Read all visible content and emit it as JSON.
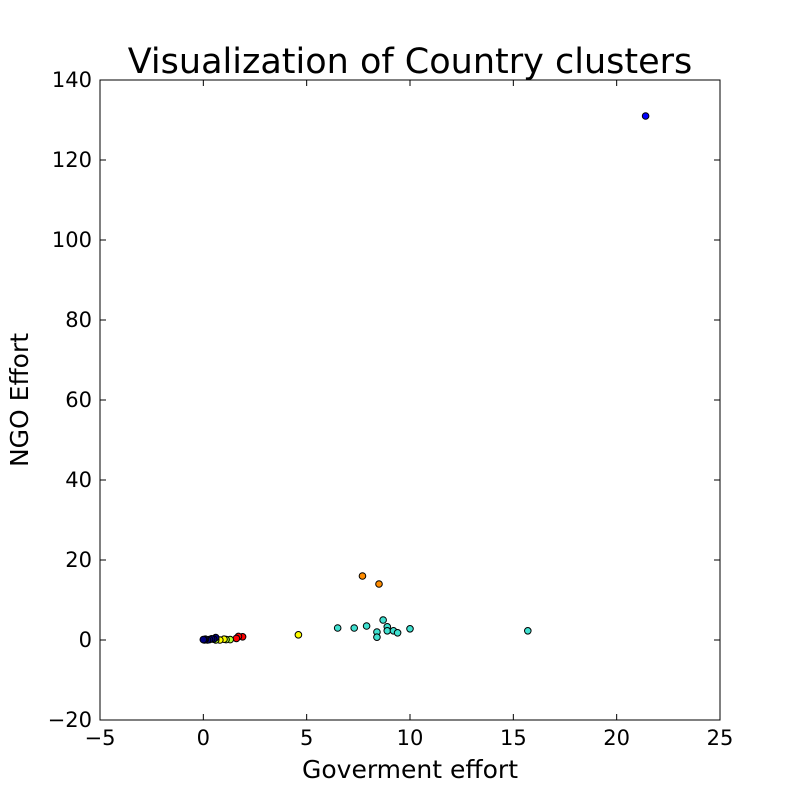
{
  "chart_data": {
    "type": "scatter",
    "title": "Visualization of Country clusters",
    "xlabel": "Goverment effort",
    "ylabel": "NGO Effort",
    "xlim": [
      -5,
      25
    ],
    "ylim": [
      -20,
      140
    ],
    "xticks": [
      -5,
      0,
      5,
      10,
      15,
      20,
      25
    ],
    "xtick_labels": [
      "−5",
      "0",
      "5",
      "10",
      "15",
      "20",
      "25"
    ],
    "yticks": [
      -20,
      0,
      20,
      40,
      60,
      80,
      100,
      120,
      140
    ],
    "ytick_labels": [
      "−20",
      "0",
      "20",
      "40",
      "60",
      "80",
      "100",
      "120",
      "140"
    ],
    "grid": false,
    "marker_edge_color": "#000000",
    "points": [
      {
        "x": 21.4,
        "y": 131.0,
        "color": "#0000ff"
      },
      {
        "x": 7.7,
        "y": 16.0,
        "color": "#ff8c00"
      },
      {
        "x": 8.5,
        "y": 14.0,
        "color": "#ff8c00"
      },
      {
        "x": 8.7,
        "y": 5.0,
        "color": "#40e0d0"
      },
      {
        "x": 6.5,
        "y": 3.0,
        "color": "#40e0d0"
      },
      {
        "x": 7.3,
        "y": 3.0,
        "color": "#40e0d0"
      },
      {
        "x": 7.9,
        "y": 3.5,
        "color": "#40e0d0"
      },
      {
        "x": 8.9,
        "y": 3.3,
        "color": "#40e0d0"
      },
      {
        "x": 8.9,
        "y": 2.3,
        "color": "#40e0d0"
      },
      {
        "x": 9.2,
        "y": 2.3,
        "color": "#40e0d0"
      },
      {
        "x": 9.4,
        "y": 1.8,
        "color": "#40e0d0"
      },
      {
        "x": 10.0,
        "y": 2.8,
        "color": "#40e0d0"
      },
      {
        "x": 8.4,
        "y": 2.0,
        "color": "#40e0d0"
      },
      {
        "x": 8.4,
        "y": 0.7,
        "color": "#40e0d0"
      },
      {
        "x": 15.7,
        "y": 2.3,
        "color": "#40e0d0"
      },
      {
        "x": 4.6,
        "y": 1.3,
        "color": "#ffff00"
      },
      {
        "x": 1.9,
        "y": 0.8,
        "color": "#ff0000"
      },
      {
        "x": 1.7,
        "y": 0.9,
        "color": "#ff0000"
      },
      {
        "x": 1.6,
        "y": 0.4,
        "color": "#ff0000"
      },
      {
        "x": 1.3,
        "y": 0.1,
        "color": "#adff2f"
      },
      {
        "x": 1.1,
        "y": 0.1,
        "color": "#adff2f"
      },
      {
        "x": 1.0,
        "y": 0.2,
        "color": "#ffff00"
      },
      {
        "x": 0.8,
        "y": 0.0,
        "color": "#ffff00"
      },
      {
        "x": 0.6,
        "y": 0.0,
        "color": "#adff2f"
      },
      {
        "x": 0.6,
        "y": 0.6,
        "color": "#000080"
      },
      {
        "x": 0.5,
        "y": 0.2,
        "color": "#000080"
      },
      {
        "x": 0.4,
        "y": 0.3,
        "color": "#000080"
      },
      {
        "x": 0.3,
        "y": 0.1,
        "color": "#000080"
      },
      {
        "x": 0.2,
        "y": 0.0,
        "color": "#000080"
      },
      {
        "x": 0.1,
        "y": 0.2,
        "color": "#000080"
      },
      {
        "x": 0.05,
        "y": 0.0,
        "color": "#000080"
      },
      {
        "x": 0.0,
        "y": 0.1,
        "color": "#000080"
      }
    ]
  }
}
